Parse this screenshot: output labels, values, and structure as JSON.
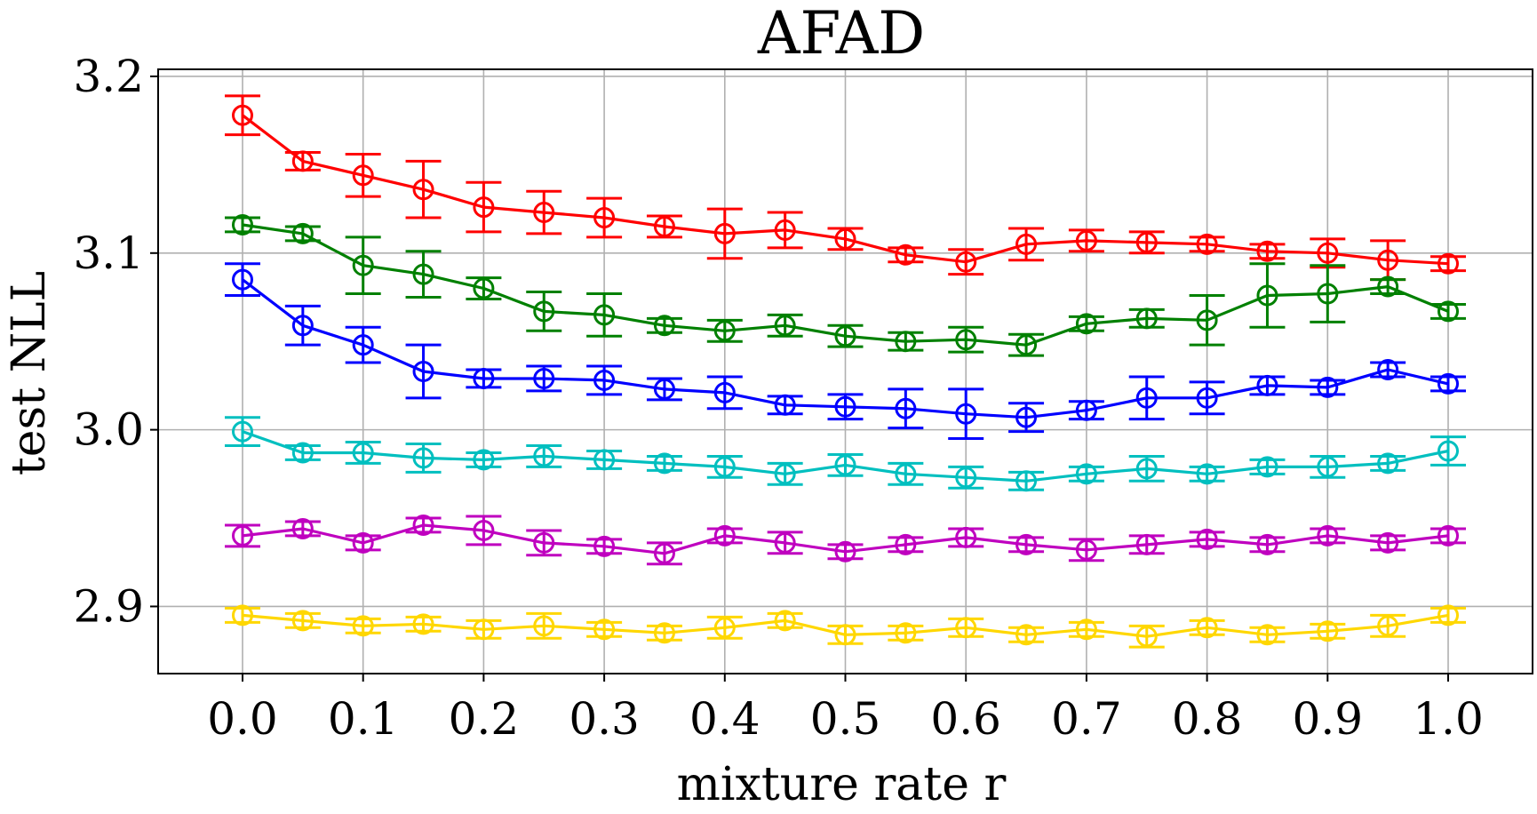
{
  "chart_data": {
    "type": "line",
    "title": "AFAD",
    "xlabel": "mixture rate r",
    "ylabel": "test NLL",
    "xlim": [
      -0.07,
      1.07
    ],
    "ylim": [
      2.862,
      3.204
    ],
    "grid": true,
    "x": [
      0.0,
      0.05,
      0.1,
      0.15,
      0.2,
      0.25,
      0.3,
      0.35,
      0.4,
      0.45,
      0.5,
      0.55,
      0.6,
      0.65,
      0.7,
      0.75,
      0.8,
      0.85,
      0.9,
      0.95,
      1.0
    ],
    "x_tick_values": [
      0.0,
      0.1,
      0.2,
      0.3,
      0.4,
      0.5,
      0.6,
      0.7,
      0.8,
      0.9,
      1.0
    ],
    "x_tick_labels": [
      "0.0",
      "0.1",
      "0.2",
      "0.3",
      "0.4",
      "0.5",
      "0.6",
      "0.7",
      "0.8",
      "0.9",
      "1.0"
    ],
    "y_tick_values": [
      2.9,
      3.0,
      3.1,
      3.2
    ],
    "y_tick_labels": [
      "2.9",
      "3.0",
      "3.1",
      "3.2"
    ],
    "series": [
      {
        "name": "red",
        "color": "#ff0000",
        "values": [
          3.178,
          3.152,
          3.144,
          3.136,
          3.126,
          3.123,
          3.12,
          3.115,
          3.111,
          3.113,
          3.108,
          3.099,
          3.095,
          3.105,
          3.107,
          3.106,
          3.105,
          3.101,
          3.1,
          3.096,
          3.094
        ],
        "errors": [
          0.011,
          0.005,
          0.012,
          0.016,
          0.014,
          0.012,
          0.011,
          0.006,
          0.014,
          0.01,
          0.006,
          0.004,
          0.007,
          0.009,
          0.006,
          0.006,
          0.004,
          0.004,
          0.008,
          0.011,
          0.004
        ]
      },
      {
        "name": "green",
        "color": "#008000",
        "values": [
          3.116,
          3.111,
          3.093,
          3.088,
          3.08,
          3.067,
          3.065,
          3.059,
          3.056,
          3.059,
          3.053,
          3.05,
          3.051,
          3.048,
          3.06,
          3.063,
          3.062,
          3.076,
          3.077,
          3.081,
          3.067
        ],
        "errors": [
          0.004,
          0.004,
          0.016,
          0.013,
          0.006,
          0.011,
          0.012,
          0.004,
          0.006,
          0.006,
          0.006,
          0.005,
          0.007,
          0.006,
          0.004,
          0.005,
          0.014,
          0.018,
          0.016,
          0.004,
          0.004
        ]
      },
      {
        "name": "blue",
        "color": "#0000ff",
        "values": [
          3.085,
          3.059,
          3.048,
          3.033,
          3.029,
          3.029,
          3.028,
          3.023,
          3.021,
          3.014,
          3.013,
          3.012,
          3.009,
          3.007,
          3.011,
          3.018,
          3.018,
          3.025,
          3.024,
          3.034,
          3.026
        ],
        "errors": [
          0.009,
          0.011,
          0.01,
          0.015,
          0.005,
          0.007,
          0.008,
          0.006,
          0.009,
          0.005,
          0.007,
          0.011,
          0.014,
          0.008,
          0.005,
          0.012,
          0.009,
          0.005,
          0.004,
          0.004,
          0.004
        ]
      },
      {
        "name": "cyan",
        "color": "#00bfbf",
        "values": [
          2.999,
          2.987,
          2.987,
          2.984,
          2.983,
          2.985,
          2.983,
          2.981,
          2.979,
          2.975,
          2.98,
          2.975,
          2.973,
          2.971,
          2.975,
          2.978,
          2.975,
          2.979,
          2.979,
          2.981,
          2.988
        ],
        "errors": [
          0.008,
          0.004,
          0.006,
          0.008,
          0.004,
          0.006,
          0.005,
          0.004,
          0.006,
          0.006,
          0.006,
          0.006,
          0.006,
          0.005,
          0.004,
          0.007,
          0.004,
          0.004,
          0.006,
          0.004,
          0.008
        ]
      },
      {
        "name": "magenta",
        "color": "#bf00bf",
        "values": [
          2.94,
          2.944,
          2.936,
          2.946,
          2.943,
          2.936,
          2.934,
          2.93,
          2.94,
          2.936,
          2.931,
          2.935,
          2.939,
          2.935,
          2.932,
          2.935,
          2.938,
          2.935,
          2.94,
          2.936,
          2.94
        ],
        "errors": [
          0.006,
          0.004,
          0.004,
          0.004,
          0.008,
          0.007,
          0.004,
          0.006,
          0.004,
          0.006,
          0.004,
          0.004,
          0.005,
          0.004,
          0.006,
          0.005,
          0.004,
          0.004,
          0.004,
          0.004,
          0.004
        ]
      },
      {
        "name": "yellow",
        "color": "#ffd700",
        "values": [
          2.895,
          2.892,
          2.889,
          2.89,
          2.887,
          2.889,
          2.887,
          2.885,
          2.888,
          2.892,
          2.884,
          2.885,
          2.888,
          2.884,
          2.887,
          2.883,
          2.888,
          2.884,
          2.886,
          2.889,
          2.895
        ],
        "errors": [
          0.004,
          0.004,
          0.004,
          0.004,
          0.005,
          0.007,
          0.004,
          0.004,
          0.006,
          0.004,
          0.005,
          0.004,
          0.005,
          0.004,
          0.004,
          0.006,
          0.004,
          0.004,
          0.004,
          0.006,
          0.004
        ]
      }
    ]
  }
}
